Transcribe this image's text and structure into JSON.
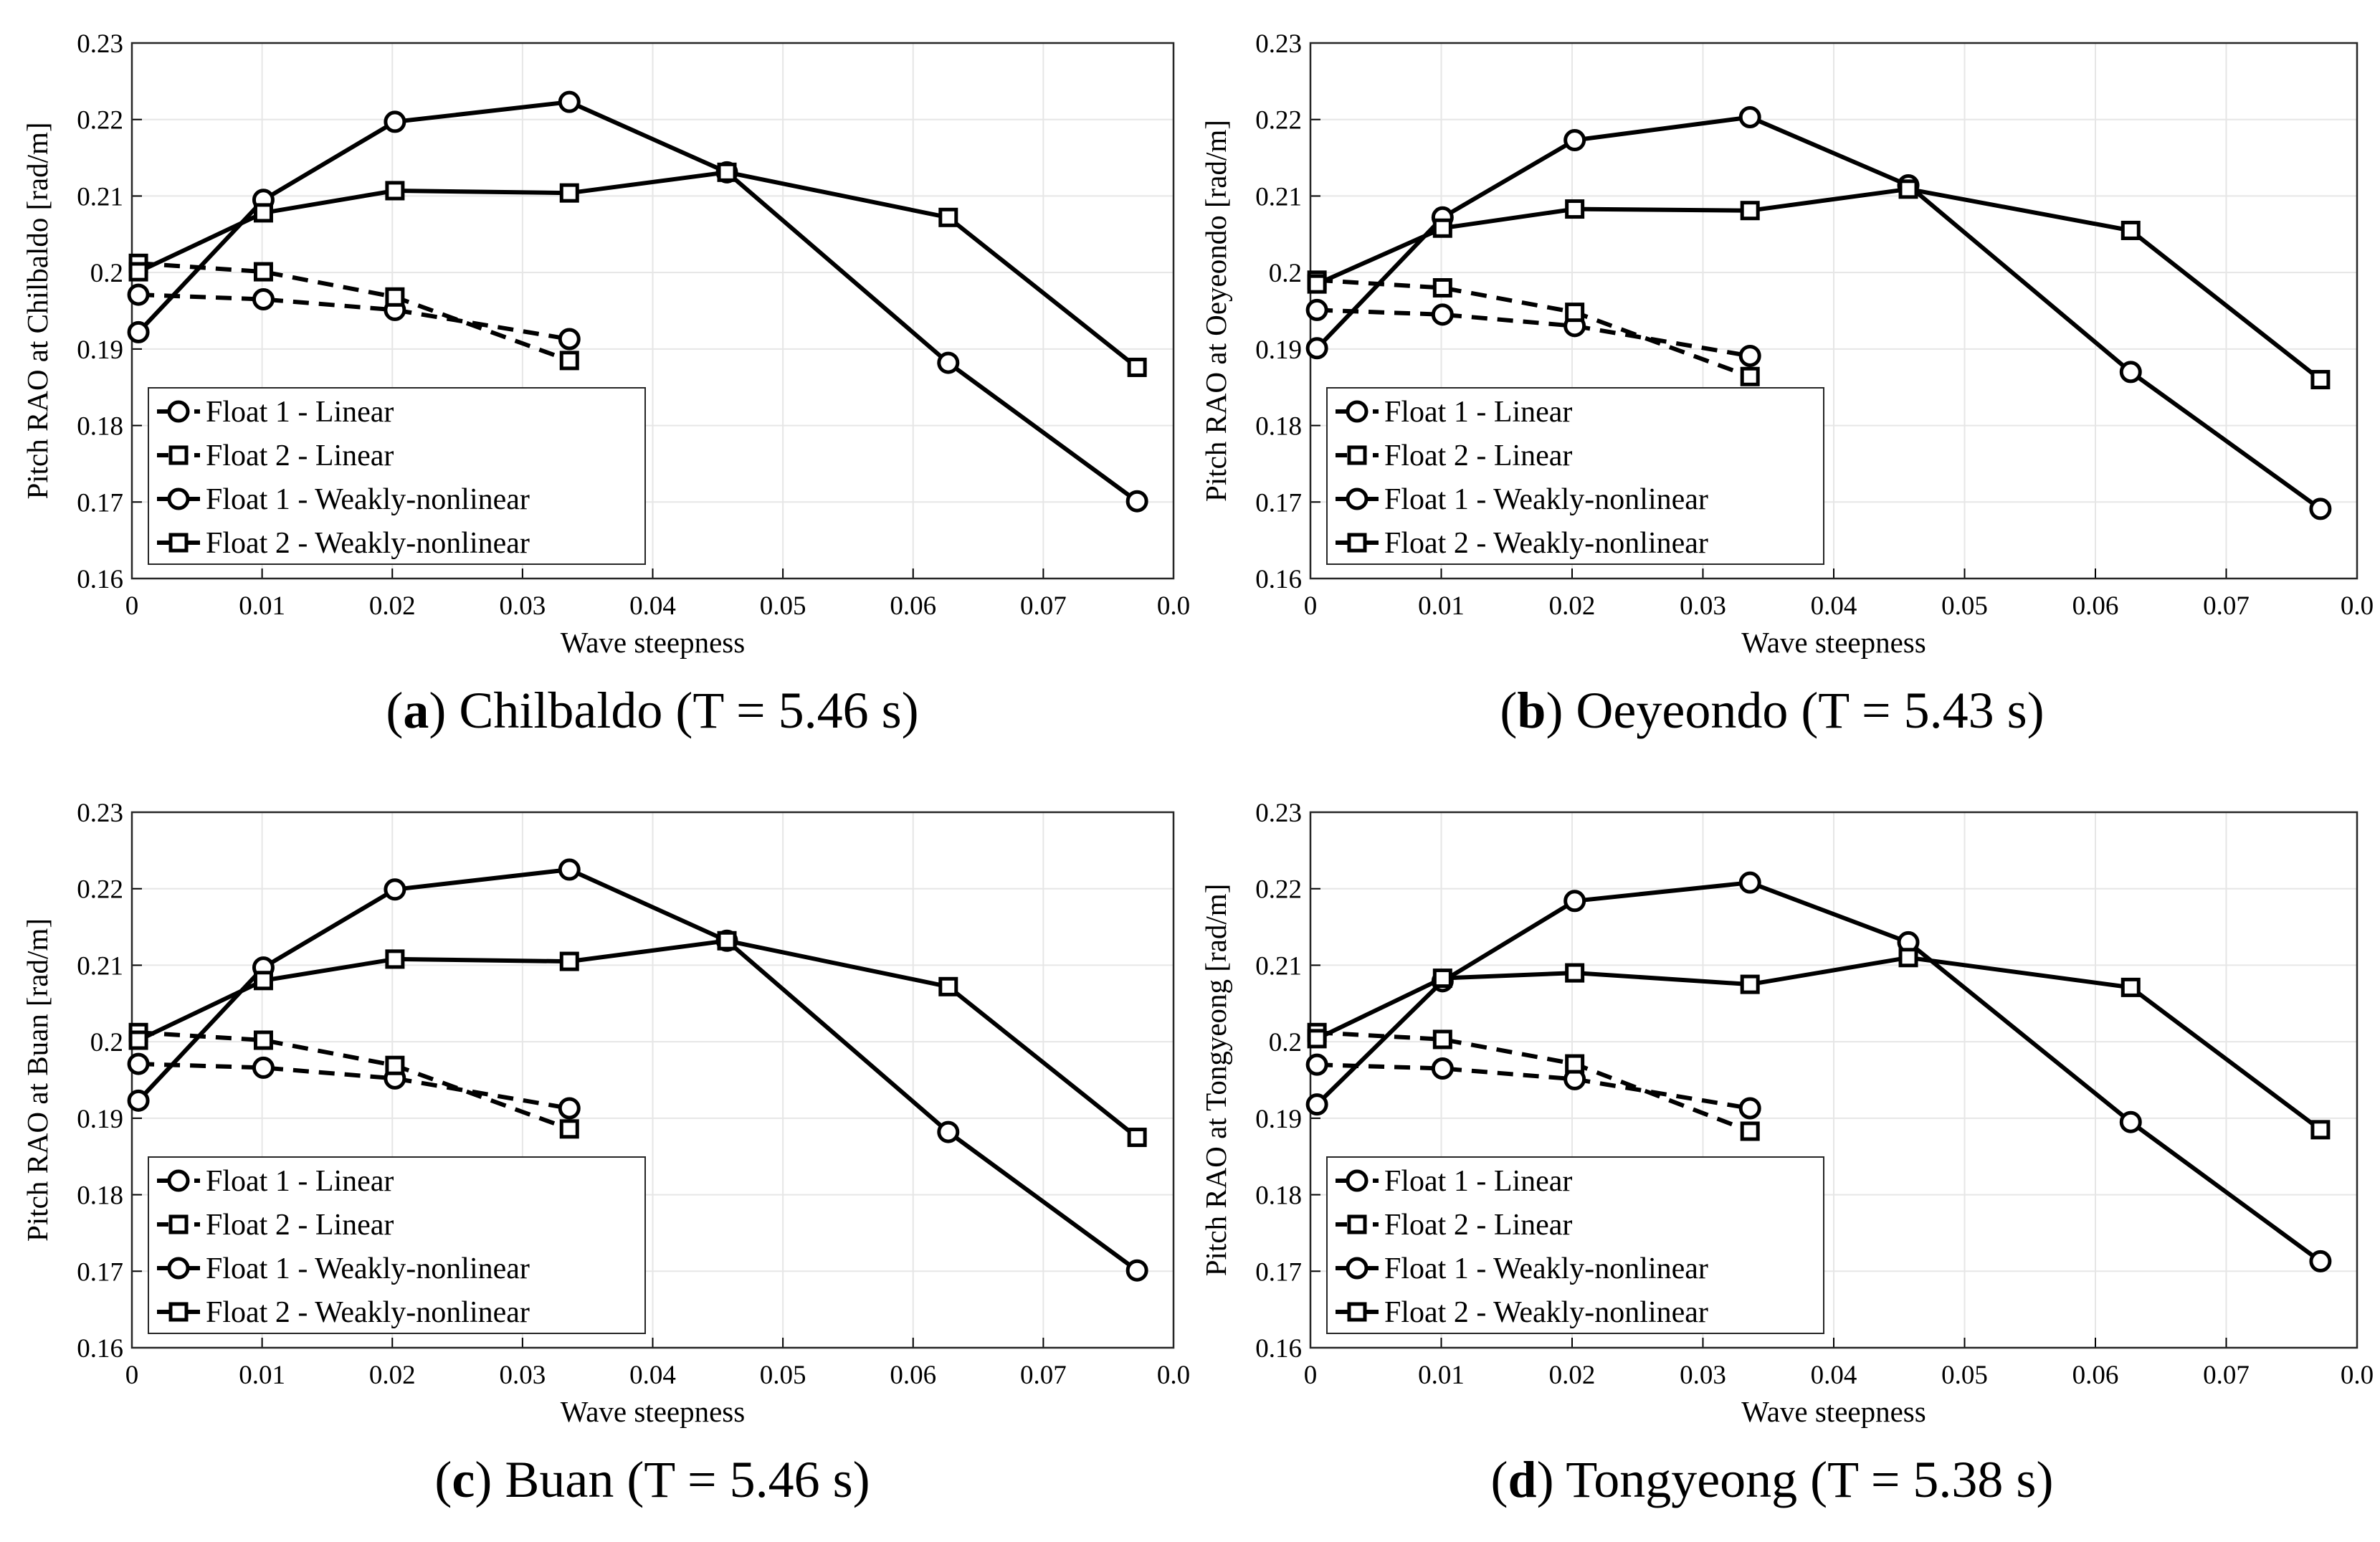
{
  "chart_data": [
    {
      "type": "line",
      "caption_letter": "a",
      "caption_rest": " Chilbaldo (T = 5.46 s)",
      "caption_open": "(",
      "caption_close": ")",
      "xlabel": "Wave steepness",
      "ylabel": "Pitch RAO at Chilbaldo [rad/m]",
      "xlim": [
        0,
        0.08
      ],
      "ylim": [
        0.16,
        0.23
      ],
      "xticks": [
        "0",
        "0.01",
        "0.02",
        "0.03",
        "0.04",
        "0.05",
        "0.06",
        "0.07",
        "0.0"
      ],
      "yticks": [
        "0.16",
        "0.17",
        "0.18",
        "0.19",
        "0.2",
        "0.21",
        "0.22",
        "0.23"
      ],
      "series": [
        {
          "name": "Float 1 - Linear",
          "marker": "circle",
          "dash": true,
          "x": [
            0.0005,
            0.0101,
            0.0202,
            0.0336
          ],
          "y": [
            0.1971,
            0.1965,
            0.1951,
            0.1913
          ]
        },
        {
          "name": "Float 2 - Linear",
          "marker": "square",
          "dash": true,
          "x": [
            0.0005,
            0.0101,
            0.0202,
            0.0336
          ],
          "y": [
            0.2012,
            0.2001,
            0.1968,
            0.1885
          ]
        },
        {
          "name": "Float 1 - Weakly-nonlinear",
          "marker": "circle",
          "dash": false,
          "x": [
            0.0005,
            0.0101,
            0.0202,
            0.0336,
            0.0457,
            0.0627,
            0.0772
          ],
          "y": [
            0.1922,
            0.2095,
            0.2197,
            0.2223,
            0.2131,
            0.1882,
            0.1701
          ]
        },
        {
          "name": "Float 2 - Weakly-nonlinear",
          "marker": "square",
          "dash": false,
          "x": [
            0.0005,
            0.0101,
            0.0202,
            0.0336,
            0.0457,
            0.0627,
            0.0772
          ],
          "y": [
            0.2001,
            0.2078,
            0.2107,
            0.2104,
            0.2131,
            0.2072,
            0.1876
          ]
        }
      ]
    },
    {
      "type": "line",
      "caption_letter": "b",
      "caption_rest": " Oeyeondo (T = 5.43 s)",
      "caption_open": "(",
      "caption_close": ")",
      "xlabel": "Wave steepness",
      "ylabel": "Pitch RAO at Oeyeondo [rad/m]",
      "xlim": [
        0,
        0.08
      ],
      "ylim": [
        0.16,
        0.23
      ],
      "xticks": [
        "0",
        "0.01",
        "0.02",
        "0.03",
        "0.04",
        "0.05",
        "0.06",
        "0.07",
        "0.0"
      ],
      "yticks": [
        "0.16",
        "0.17",
        "0.18",
        "0.19",
        "0.2",
        "0.21",
        "0.22",
        "0.23"
      ],
      "series": [
        {
          "name": "Float 1 - Linear",
          "marker": "circle",
          "dash": true,
          "x": [
            0.0005,
            0.0101,
            0.0202,
            0.0336
          ],
          "y": [
            0.1951,
            0.1945,
            0.193,
            0.1891
          ]
        },
        {
          "name": "Float 2 - Linear",
          "marker": "square",
          "dash": true,
          "x": [
            0.0005,
            0.0101,
            0.0202,
            0.0336
          ],
          "y": [
            0.199,
            0.198,
            0.1948,
            0.1864
          ]
        },
        {
          "name": "Float 1 - Weakly-nonlinear",
          "marker": "circle",
          "dash": false,
          "x": [
            0.0005,
            0.0101,
            0.0202,
            0.0336,
            0.0457,
            0.0627,
            0.0772
          ],
          "y": [
            0.1901,
            0.2072,
            0.2173,
            0.2203,
            0.2114,
            0.187,
            0.1691
          ]
        },
        {
          "name": "Float 2 - Weakly-nonlinear",
          "marker": "square",
          "dash": false,
          "x": [
            0.0005,
            0.0101,
            0.0202,
            0.0336,
            0.0457,
            0.0627,
            0.0772
          ],
          "y": [
            0.1985,
            0.2058,
            0.2083,
            0.2081,
            0.2109,
            0.2055,
            0.186
          ]
        }
      ]
    },
    {
      "type": "line",
      "caption_letter": "c",
      "caption_rest": " Buan (T = 5.46 s)",
      "caption_open": "(",
      "caption_close": ")",
      "xlabel": "Wave steepness",
      "ylabel": "Pitch RAO at Buan [rad/m]",
      "xlim": [
        0,
        0.08
      ],
      "ylim": [
        0.16,
        0.23
      ],
      "xticks": [
        "0",
        "0.01",
        "0.02",
        "0.03",
        "0.04",
        "0.05",
        "0.06",
        "0.07",
        "0.0"
      ],
      "yticks": [
        "0.16",
        "0.17",
        "0.18",
        "0.19",
        "0.2",
        "0.21",
        "0.22",
        "0.23"
      ],
      "series": [
        {
          "name": "Float 1 - Linear",
          "marker": "circle",
          "dash": true,
          "x": [
            0.0005,
            0.0101,
            0.0202,
            0.0336
          ],
          "y": [
            0.1971,
            0.1966,
            0.1952,
            0.1913
          ]
        },
        {
          "name": "Float 2 - Linear",
          "marker": "square",
          "dash": true,
          "x": [
            0.0005,
            0.0101,
            0.0202,
            0.0336
          ],
          "y": [
            0.2012,
            0.2002,
            0.1969,
            0.1886
          ]
        },
        {
          "name": "Float 1 - Weakly-nonlinear",
          "marker": "circle",
          "dash": false,
          "x": [
            0.0005,
            0.0101,
            0.0202,
            0.0336,
            0.0457,
            0.0627,
            0.0772
          ],
          "y": [
            0.1923,
            0.2097,
            0.2199,
            0.2225,
            0.2132,
            0.1882,
            0.1701
          ]
        },
        {
          "name": "Float 2 - Weakly-nonlinear",
          "marker": "square",
          "dash": false,
          "x": [
            0.0005,
            0.0101,
            0.0202,
            0.0336,
            0.0457,
            0.0627,
            0.0772
          ],
          "y": [
            0.2002,
            0.208,
            0.2108,
            0.2105,
            0.2132,
            0.2072,
            0.1875
          ]
        }
      ]
    },
    {
      "type": "line",
      "caption_letter": "d",
      "caption_rest": " Tongyeong (T = 5.38 s)",
      "caption_open": "(",
      "caption_close": ")",
      "xlabel": "Wave steepness",
      "ylabel": "Pitch RAO at Tongyeong [rad/m]",
      "xlim": [
        0,
        0.08
      ],
      "ylim": [
        0.16,
        0.23
      ],
      "xticks": [
        "0",
        "0.01",
        "0.02",
        "0.03",
        "0.04",
        "0.05",
        "0.06",
        "0.07",
        "0.0"
      ],
      "yticks": [
        "0.16",
        "0.17",
        "0.18",
        "0.19",
        "0.2",
        "0.21",
        "0.22",
        "0.23"
      ],
      "series": [
        {
          "name": "Float 1 - Linear",
          "marker": "circle",
          "dash": true,
          "x": [
            0.0005,
            0.0101,
            0.0202,
            0.0336
          ],
          "y": [
            0.197,
            0.1965,
            0.1951,
            0.1913
          ]
        },
        {
          "name": "Float 2 - Linear",
          "marker": "square",
          "dash": true,
          "x": [
            0.0005,
            0.0101,
            0.0202,
            0.0336
          ],
          "y": [
            0.2012,
            0.2003,
            0.1971,
            0.1883
          ]
        },
        {
          "name": "Float 1 - Weakly-nonlinear",
          "marker": "circle",
          "dash": false,
          "x": [
            0.0005,
            0.0101,
            0.0202,
            0.0336,
            0.0457,
            0.0627,
            0.0772
          ],
          "y": [
            0.1918,
            0.2079,
            0.2184,
            0.2208,
            0.213,
            0.1895,
            0.1713
          ]
        },
        {
          "name": "Float 2 - Weakly-nonlinear",
          "marker": "square",
          "dash": false,
          "x": [
            0.0005,
            0.0101,
            0.0202,
            0.0336,
            0.0457,
            0.0627,
            0.0772
          ],
          "y": [
            0.2004,
            0.2083,
            0.209,
            0.2075,
            0.211,
            0.2071,
            0.1885
          ]
        }
      ]
    }
  ]
}
